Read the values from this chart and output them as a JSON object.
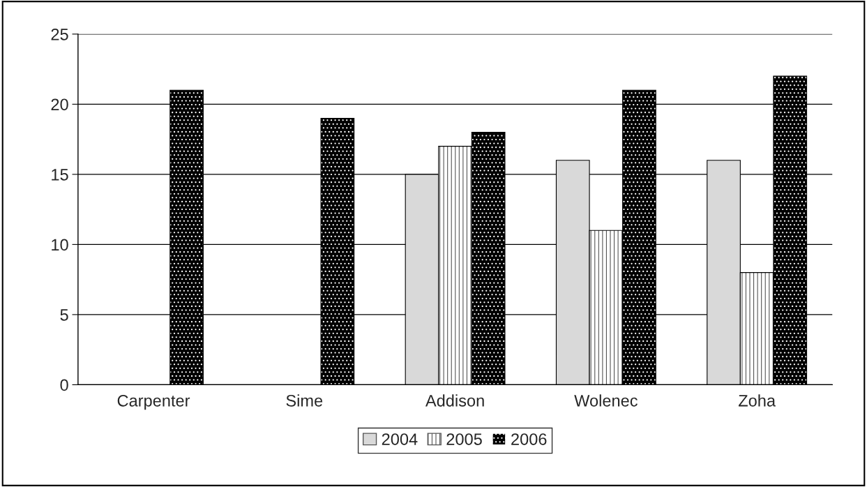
{
  "chart_data": {
    "type": "bar",
    "categories": [
      "Carpenter",
      "Sime",
      "Addison",
      "Wolenec",
      "Zoha"
    ],
    "series": [
      {
        "name": "2004",
        "color": "#d9d9d9",
        "values": [
          null,
          null,
          15,
          16,
          16
        ]
      },
      {
        "name": "2005",
        "color": "#ffffff",
        "values": [
          null,
          null,
          17,
          11,
          8
        ]
      },
      {
        "name": "2006",
        "color": "#000000",
        "values": [
          21,
          19,
          18,
          21,
          22
        ]
      }
    ],
    "ylim": [
      0,
      25
    ],
    "yticks": [
      0,
      5,
      10,
      15,
      20,
      25
    ],
    "grid": "y",
    "legend": "bottom"
  }
}
